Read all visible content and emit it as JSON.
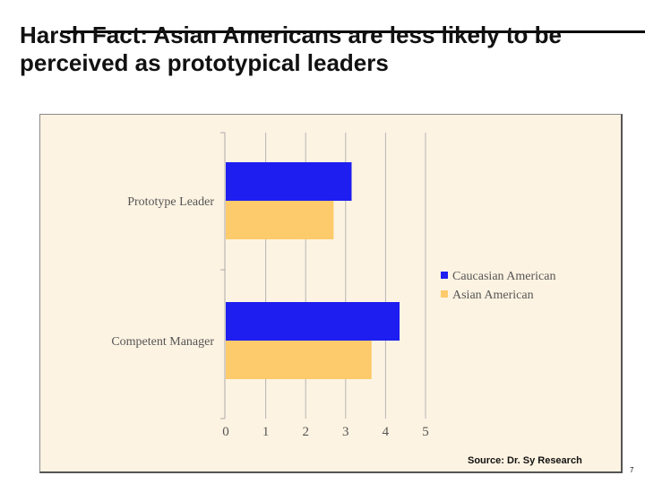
{
  "slide": {
    "title": "Harsh Fact: Asian Americans are less likely to be perceived as prototypical leaders",
    "source": "Source:  Dr. Sy Research",
    "page_number": "7"
  },
  "chart_data": {
    "type": "bar",
    "orientation": "horizontal",
    "categories": [
      "Prototype Leader",
      "Competent Manager"
    ],
    "series": [
      {
        "name": "Caucasian American",
        "color": "#1e1ef0",
        "values": [
          3.15,
          4.35
        ]
      },
      {
        "name": "Asian American",
        "color": "#fdcb6b",
        "values": [
          2.7,
          3.65
        ]
      }
    ],
    "xlim": [
      0,
      5
    ],
    "xticks": [
      0,
      1,
      2,
      3,
      4,
      5
    ],
    "grid": true,
    "legend": "right",
    "background": "#fdf3e2"
  }
}
